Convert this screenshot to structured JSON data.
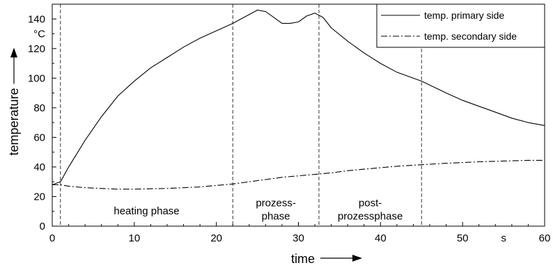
{
  "chart_data": {
    "type": "line",
    "xlabel": "time",
    "ylabel": "temperature",
    "x_unit": "s",
    "y_unit": "°C",
    "xlim": [
      0,
      60
    ],
    "ylim": [
      0,
      150
    ],
    "x_ticks": [
      0,
      10,
      20,
      30,
      40,
      50,
      60
    ],
    "y_ticks": [
      0,
      20,
      40,
      60,
      80,
      100,
      120,
      140
    ],
    "grid": false,
    "legend_position": "top-right",
    "series": [
      {
        "name": "temp. primary side",
        "line_style": "solid",
        "x": [
          0,
          1,
          2,
          4,
          6,
          8,
          10,
          12,
          14,
          16,
          18,
          20,
          22,
          24,
          25,
          26,
          27,
          28,
          29,
          30,
          31,
          32,
          33,
          34,
          36,
          38,
          40,
          42,
          45,
          48,
          50,
          52,
          54,
          56,
          58,
          60
        ],
        "y": [
          28,
          30,
          40,
          58,
          74,
          88,
          98,
          107,
          114,
          121,
          127,
          132,
          137,
          143,
          146,
          145,
          141,
          137,
          137,
          138,
          142,
          144,
          141,
          134,
          125,
          117,
          110,
          104,
          98,
          90,
          85,
          81,
          77,
          73,
          70,
          68
        ]
      },
      {
        "name": "temp. secondary side",
        "line_style": "dashdot",
        "x": [
          0,
          1,
          2,
          4,
          6,
          8,
          10,
          14,
          18,
          20,
          22,
          24,
          26,
          28,
          30,
          32,
          34,
          36,
          38,
          40,
          42,
          45,
          48,
          50,
          52,
          55,
          58,
          60
        ],
        "y": [
          28,
          28,
          27,
          26,
          25.5,
          25,
          25,
          25.5,
          26.5,
          27.5,
          28.5,
          30,
          31.5,
          33,
          34,
          35,
          36,
          37.5,
          38.5,
          39.5,
          40.5,
          41.5,
          42.5,
          43,
          43.5,
          44,
          44.5,
          44.5
        ]
      }
    ],
    "phase_boundaries": [
      1,
      22,
      32.5,
      45
    ],
    "phases": [
      {
        "label": "heating phase",
        "x_start": 1,
        "x_end": 22
      },
      {
        "label": "prozess-\nphase",
        "x_start": 22,
        "x_end": 32.5
      },
      {
        "label": "post-\nprozessphase",
        "x_start": 32.5,
        "x_end": 45
      }
    ]
  }
}
